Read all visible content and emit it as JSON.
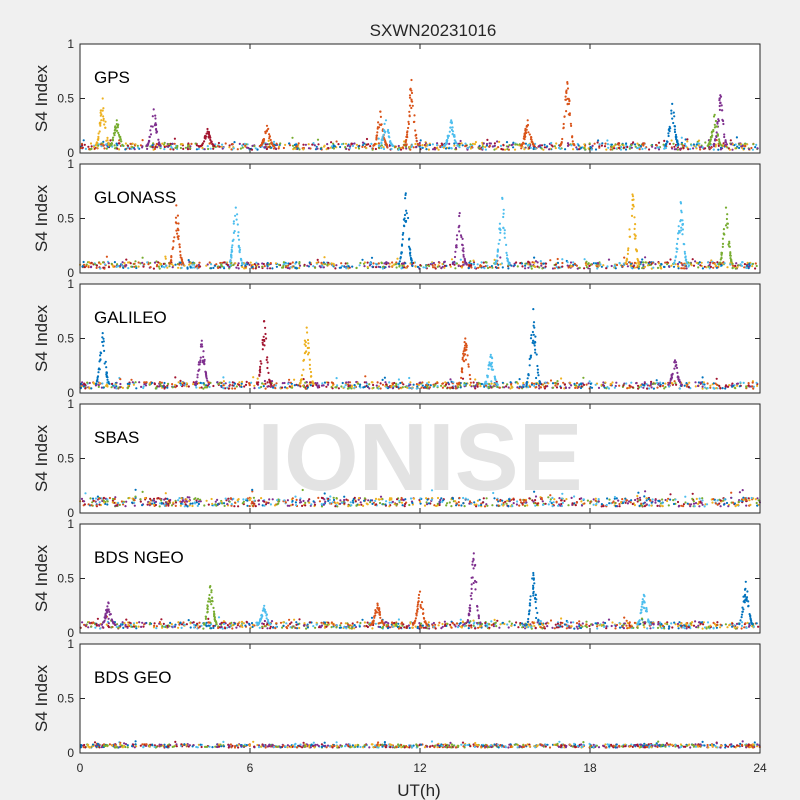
{
  "chart_data": {
    "type": "scatter",
    "title": "SXWN20231016",
    "xlabel": "UT(h)",
    "ylabel": "S4 Index",
    "xlim": [
      0,
      24
    ],
    "ylim": [
      0,
      1
    ],
    "xticks": [
      "0",
      "6",
      "12",
      "18",
      "24"
    ],
    "yticks": [
      "0",
      "0.5",
      "1"
    ],
    "watermark": "IONISE",
    "colors": [
      "#0072BD",
      "#D95319",
      "#EDB120",
      "#7E2F8E",
      "#77AC30",
      "#4DBEEE",
      "#A2142F"
    ],
    "panels": [
      {
        "label": "GPS",
        "baseline": 0.06,
        "noise": 0.03,
        "peaks": [
          {
            "x": 0.8,
            "y": 0.5,
            "color": 2
          },
          {
            "x": 1.3,
            "y": 0.3,
            "color": 4
          },
          {
            "x": 2.6,
            "y": 0.4,
            "color": 3
          },
          {
            "x": 4.5,
            "y": 0.22,
            "color": 6
          },
          {
            "x": 6.6,
            "y": 0.25,
            "color": 1
          },
          {
            "x": 10.6,
            "y": 0.38,
            "color": 1
          },
          {
            "x": 10.8,
            "y": 0.3,
            "color": 5
          },
          {
            "x": 11.7,
            "y": 0.67,
            "color": 1
          },
          {
            "x": 13.1,
            "y": 0.3,
            "color": 5
          },
          {
            "x": 15.8,
            "y": 0.3,
            "color": 1
          },
          {
            "x": 17.2,
            "y": 0.65,
            "color": 1
          },
          {
            "x": 20.9,
            "y": 0.45,
            "color": 0
          },
          {
            "x": 22.6,
            "y": 0.53,
            "color": 3
          },
          {
            "x": 22.4,
            "y": 0.35,
            "color": 4
          }
        ]
      },
      {
        "label": "GLONASS",
        "baseline": 0.07,
        "noise": 0.03,
        "peaks": [
          {
            "x": 3.4,
            "y": 0.62,
            "color": 1
          },
          {
            "x": 5.5,
            "y": 0.6,
            "color": 5
          },
          {
            "x": 11.5,
            "y": 0.73,
            "color": 0
          },
          {
            "x": 13.4,
            "y": 0.55,
            "color": 3
          },
          {
            "x": 14.9,
            "y": 0.69,
            "color": 5
          },
          {
            "x": 19.5,
            "y": 0.72,
            "color": 2
          },
          {
            "x": 21.2,
            "y": 0.65,
            "color": 5
          },
          {
            "x": 22.8,
            "y": 0.6,
            "color": 4
          }
        ]
      },
      {
        "label": "GALILEO",
        "baseline": 0.07,
        "noise": 0.03,
        "peaks": [
          {
            "x": 0.8,
            "y": 0.55,
            "color": 0
          },
          {
            "x": 4.3,
            "y": 0.48,
            "color": 3
          },
          {
            "x": 6.5,
            "y": 0.66,
            "color": 6
          },
          {
            "x": 8.0,
            "y": 0.6,
            "color": 2
          },
          {
            "x": 13.6,
            "y": 0.5,
            "color": 1
          },
          {
            "x": 14.5,
            "y": 0.35,
            "color": 5
          },
          {
            "x": 16.0,
            "y": 0.77,
            "color": 0
          },
          {
            "x": 21.0,
            "y": 0.3,
            "color": 3
          }
        ]
      },
      {
        "label": "SBAS",
        "baseline": 0.1,
        "noise": 0.04,
        "peaks": []
      },
      {
        "label": "BDS NGEO",
        "baseline": 0.07,
        "noise": 0.03,
        "peaks": [
          {
            "x": 1.0,
            "y": 0.28,
            "color": 3
          },
          {
            "x": 4.6,
            "y": 0.43,
            "color": 4
          },
          {
            "x": 6.5,
            "y": 0.25,
            "color": 5
          },
          {
            "x": 10.5,
            "y": 0.27,
            "color": 1
          },
          {
            "x": 12.0,
            "y": 0.38,
            "color": 1
          },
          {
            "x": 13.9,
            "y": 0.73,
            "color": 3
          },
          {
            "x": 16.0,
            "y": 0.55,
            "color": 0
          },
          {
            "x": 19.9,
            "y": 0.35,
            "color": 5
          },
          {
            "x": 23.5,
            "y": 0.47,
            "color": 0
          }
        ]
      },
      {
        "label": "BDS GEO",
        "baseline": 0.065,
        "noise": 0.015,
        "peaks": []
      }
    ]
  }
}
